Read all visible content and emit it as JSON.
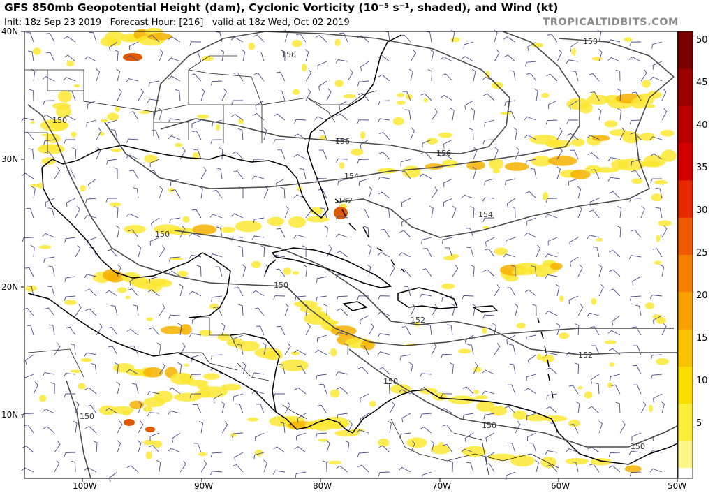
{
  "header": {
    "title": "GFS 850mb Geopotential Height (dam), Cyclonic Vorticity (10⁻⁵ s⁻¹, shaded), and Wind (kt)",
    "init": "Init: 18z Sep 23 2019",
    "forecast": "Forecast Hour: [216]",
    "valid": "valid at 18z Wed, Oct 02 2019",
    "brand": "TROPICALTIDBITS.COM"
  },
  "axes": {
    "lat_labels": [
      "40N",
      "30N",
      "20N",
      "10N"
    ],
    "lon_labels": [
      "100W",
      "90W",
      "80W",
      "70W",
      "60W",
      "50W"
    ]
  },
  "colorbar": {
    "labels": [
      "50",
      "45",
      "40",
      "35",
      "30",
      "25",
      "20",
      "15",
      "10",
      "5"
    ],
    "colors": [
      "#7a0000",
      "#9a0000",
      "#b80000",
      "#d40000",
      "#e62a00",
      "#f05a00",
      "#f57f00",
      "#f7a200",
      "#f8c400",
      "#fade00",
      "#fbef3a",
      "#fdf78a"
    ]
  },
  "contours": {
    "labels": [
      "156",
      "150",
      "156",
      "156",
      "154",
      "152",
      "154",
      "150",
      "150",
      "152",
      "152",
      "150",
      "150",
      "150",
      "150",
      "150"
    ]
  },
  "map_colors": {
    "coast": "#000000",
    "border": "#222222",
    "contour": "#4a4a4a",
    "wind": "#4b4b8a",
    "vorticity_light": "#fbe733",
    "vorticity_mid": "#f6b100",
    "vorticity_strong": "#e25a00"
  }
}
